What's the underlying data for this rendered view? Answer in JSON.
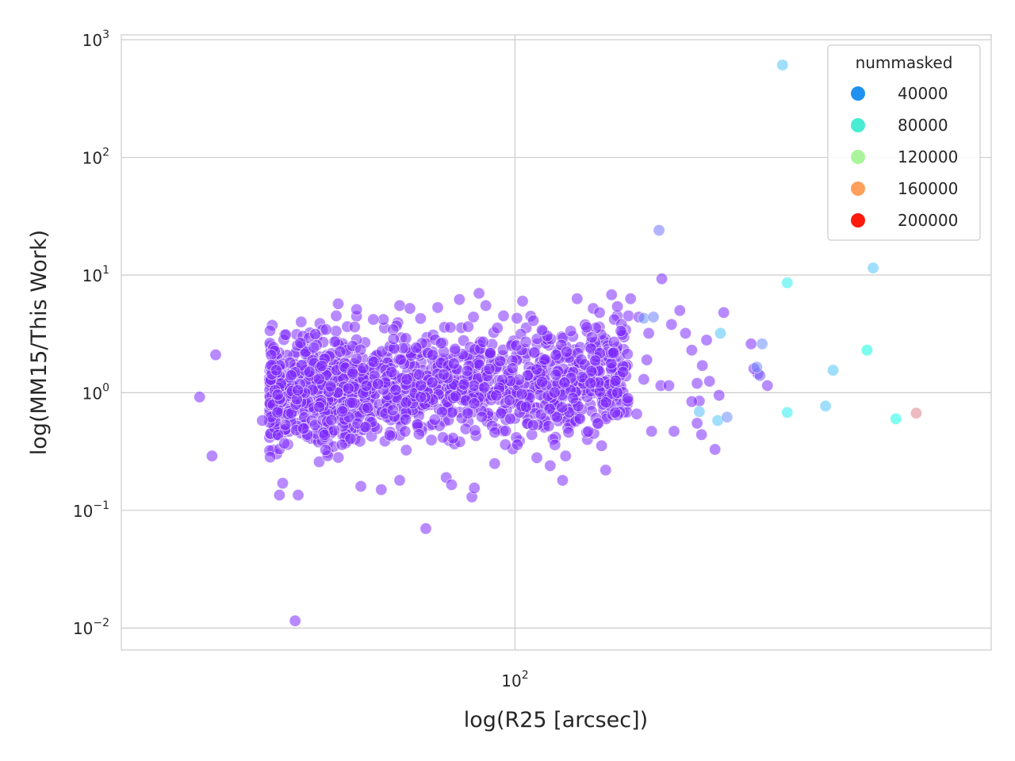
{
  "chart_data": {
    "type": "scatter",
    "title": "",
    "xlabel": "log(R25 [arcsec])",
    "ylabel": "log(MM15/This Work)",
    "xscale": "log",
    "yscale": "log",
    "xlim": [
      13,
      1180
    ],
    "ylim": [
      0.0065,
      1100
    ],
    "x_ticks": [
      {
        "base": "10",
        "exp": "2",
        "value": 100
      }
    ],
    "y_ticks": [
      {
        "base": "10",
        "exp": "−2",
        "value": 0.01
      },
      {
        "base": "10",
        "exp": "−1",
        "value": 0.1
      },
      {
        "base": "10",
        "exp": "0",
        "value": 1
      },
      {
        "base": "10",
        "exp": "1",
        "value": 10
      },
      {
        "base": "10",
        "exp": "2",
        "value": 100
      },
      {
        "base": "10",
        "exp": "3",
        "value": 1000
      }
    ],
    "grid": true,
    "legend_position": "top-right",
    "legend": {
      "title": "nummasked",
      "entries": [
        {
          "label": "40000",
          "value": 40000,
          "color": "#1e90f0"
        },
        {
          "label": "80000",
          "value": 80000,
          "color": "#48ecd2"
        },
        {
          "label": "120000",
          "value": 120000,
          "color": "#aaf59b"
        },
        {
          "label": "160000",
          "value": 160000,
          "color": "#fe9f5c"
        },
        {
          "label": "200000",
          "value": 200000,
          "color": "#ff1a0e"
        }
      ]
    },
    "colormap": "rainbow",
    "color_range": [
      0,
      220000
    ],
    "points": [
      [
        19.5,
        0.92,
        1500
      ],
      [
        21.2,
        2.1,
        1500
      ],
      [
        20.8,
        0.29,
        1500
      ],
      [
        27,
        0.58,
        1500
      ],
      [
        32,
        0.0115,
        1500
      ],
      [
        29.5,
        0.135,
        1500
      ],
      [
        30,
        0.17,
        1500
      ],
      [
        32.5,
        0.135,
        1500
      ],
      [
        63,
        0.07,
        1500
      ],
      [
        70,
        0.19,
        1500
      ],
      [
        72,
        0.165,
        1500
      ],
      [
        80,
        0.13,
        1500
      ],
      [
        81,
        0.155,
        1500
      ],
      [
        50,
        0.15,
        1500
      ],
      [
        45,
        0.16,
        1500
      ],
      [
        55,
        0.18,
        1500
      ],
      [
        90,
        0.25,
        1500
      ],
      [
        112,
        0.28,
        1500
      ],
      [
        120,
        0.24,
        1500
      ],
      [
        128,
        0.18,
        1500
      ],
      [
        130,
        0.29,
        1500
      ],
      [
        160,
        0.22,
        1500
      ],
      [
        138,
        6.3,
        1500
      ],
      [
        150,
        5.2,
        1500
      ],
      [
        155,
        4.8,
        1500
      ],
      [
        165,
        6.8,
        1500
      ],
      [
        170,
        5.4,
        1500
      ],
      [
        180,
        4.5,
        1500
      ],
      [
        182,
        6.3,
        1500
      ],
      [
        190,
        4.4,
        1500
      ],
      [
        200,
        3.2,
        1500
      ],
      [
        203,
        0.47,
        1500
      ],
      [
        213,
        1.15,
        1500
      ],
      [
        222,
        1.15,
        1500
      ],
      [
        225,
        3.8,
        1500
      ],
      [
        228,
        0.47,
        1500
      ],
      [
        235,
        5.0,
        1500
      ],
      [
        242,
        3.2,
        1500
      ],
      [
        250,
        2.3,
        1500
      ],
      [
        257,
        0.55,
        1500
      ],
      [
        170,
        1.0,
        1500
      ],
      [
        175,
        1.5,
        1500
      ],
      [
        168,
        0.68,
        1500
      ],
      [
        188,
        0.66,
        1500
      ],
      [
        195,
        1.3,
        1500
      ],
      [
        198,
        1.9,
        1500
      ],
      [
        145,
        3.6,
        1500
      ],
      [
        148,
        1.2,
        1500
      ],
      [
        135,
        0.9,
        1500
      ],
      [
        140,
        0.6,
        1500
      ],
      [
        132,
        0.46,
        1500
      ],
      [
        123,
        0.36,
        1500
      ],
      [
        295,
        4.8,
        1500
      ],
      [
        288,
        0.95,
        1500
      ],
      [
        282,
        0.33,
        1500
      ],
      [
        352,
        1.45,
        1500
      ],
      [
        110,
        4.1,
        1500
      ],
      [
        115,
        3.4,
        1500
      ],
      [
        101,
        4.3,
        1500
      ],
      [
        104,
        6.0,
        1500
      ],
      [
        55,
        5.5,
        1500
      ],
      [
        58,
        5.2,
        1500
      ],
      [
        75,
        6.2,
        1500
      ],
      [
        83,
        7.0,
        1500
      ],
      [
        67,
        5.3,
        1500
      ],
      [
        86,
        5.5,
        1500
      ],
      [
        40,
        5.7,
        1500
      ],
      [
        44,
        5.1,
        1500
      ],
      [
        214,
        9.3,
        1500
      ],
      [
        370,
        1.15,
        2000
      ],
      [
        345,
        1.6,
        1500
      ],
      [
        274,
        1.25,
        1500
      ],
      [
        264,
        1.7,
        1500
      ],
      [
        263,
        0.44,
        1500
      ],
      [
        257,
        1.2,
        1500
      ],
      [
        260,
        0.85,
        1500
      ],
      [
        250,
        0.84,
        1500
      ],
      [
        270,
        2.8,
        1500
      ],
      [
        211,
        24,
        12000
      ],
      [
        195,
        4.3,
        20000
      ],
      [
        205,
        4.4,
        15000
      ],
      [
        360,
        2.6,
        18000
      ],
      [
        356,
        1.4,
        8000
      ],
      [
        260,
        0.69,
        36000
      ],
      [
        286,
        0.58,
        40000
      ],
      [
        290,
        3.2,
        40000
      ],
      [
        400,
        610,
        40000
      ],
      [
        410,
        0.68,
        70000
      ],
      [
        410,
        8.6,
        70000
      ],
      [
        500,
        0.77,
        40000
      ],
      [
        520,
        1.55,
        40000
      ],
      [
        640,
        11.5,
        40000
      ],
      [
        620,
        2.3,
        100000
      ],
      [
        720,
        0.6,
        90000
      ],
      [
        800,
        0.67,
        205000
      ],
      [
        350,
        1.65,
        18000
      ],
      [
        340,
        2.6,
        1500
      ],
      [
        300,
        0.62,
        18000
      ]
    ],
    "dense_cluster": {
      "x_range": [
        28,
        180
      ],
      "y_range": [
        0.2,
        4.5
      ],
      "count": 1400,
      "value": 1500
    }
  }
}
